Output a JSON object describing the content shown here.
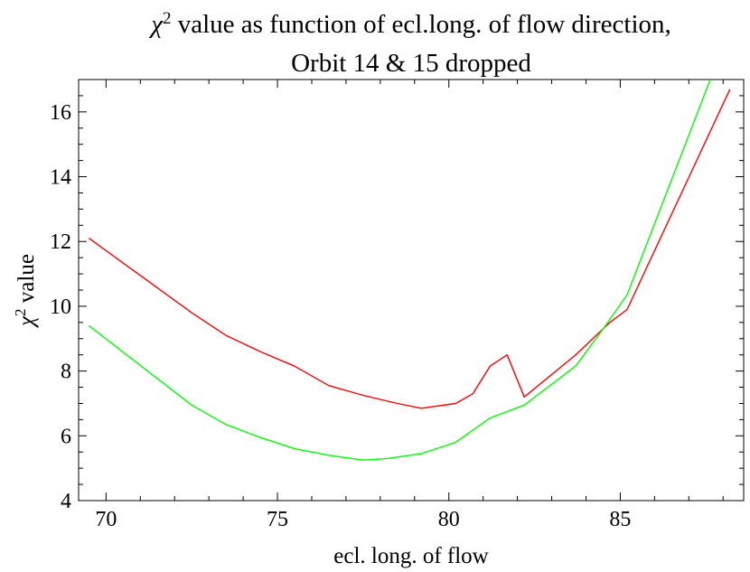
{
  "chart_data": {
    "type": "line",
    "title_symbol": "χ",
    "title_superscript": "2",
    "title_line1_rest": " value as function of ecl.long. of flow direction,",
    "title_line2": "Orbit 14 & 15 dropped",
    "xlabel": "ecl. long. of flow",
    "ylabel_symbol": "χ",
    "ylabel_superscript": "2",
    "ylabel_rest": " value",
    "xlim": [
      69.2,
      88.6
    ],
    "ylim": [
      4,
      17
    ],
    "x_ticks": [
      70,
      75,
      80,
      85
    ],
    "y_ticks": [
      4,
      6,
      8,
      10,
      12,
      14,
      16
    ],
    "grid": false,
    "series": [
      {
        "color": "#ff0000",
        "points": [
          [
            69.5,
            12.1
          ],
          [
            72.5,
            9.8
          ],
          [
            73.5,
            9.1
          ],
          [
            74.5,
            8.6
          ],
          [
            75.5,
            8.15
          ],
          [
            76.5,
            7.55
          ],
          [
            77.5,
            7.25
          ],
          [
            78.5,
            7.0
          ],
          [
            79.2,
            6.85
          ],
          [
            80.2,
            7.0
          ],
          [
            80.7,
            7.3
          ],
          [
            81.2,
            8.15
          ],
          [
            81.7,
            8.5
          ],
          [
            82.2,
            7.2
          ],
          [
            83.7,
            8.5
          ],
          [
            84.7,
            9.5
          ],
          [
            85.2,
            9.9
          ],
          [
            88.2,
            16.7
          ]
        ]
      },
      {
        "color": "#00ff00",
        "points": [
          [
            69.5,
            9.4
          ],
          [
            72.5,
            6.95
          ],
          [
            73.5,
            6.35
          ],
          [
            74.5,
            5.95
          ],
          [
            75.5,
            5.6
          ],
          [
            76.5,
            5.4
          ],
          [
            77.5,
            5.25
          ],
          [
            78.2,
            5.3
          ],
          [
            79.2,
            5.45
          ],
          [
            80.2,
            5.8
          ],
          [
            81.2,
            6.55
          ],
          [
            82.2,
            6.95
          ],
          [
            83.7,
            8.15
          ],
          [
            84.5,
            9.3
          ],
          [
            85.2,
            10.35
          ],
          [
            87.7,
            17.2
          ]
        ]
      }
    ]
  }
}
